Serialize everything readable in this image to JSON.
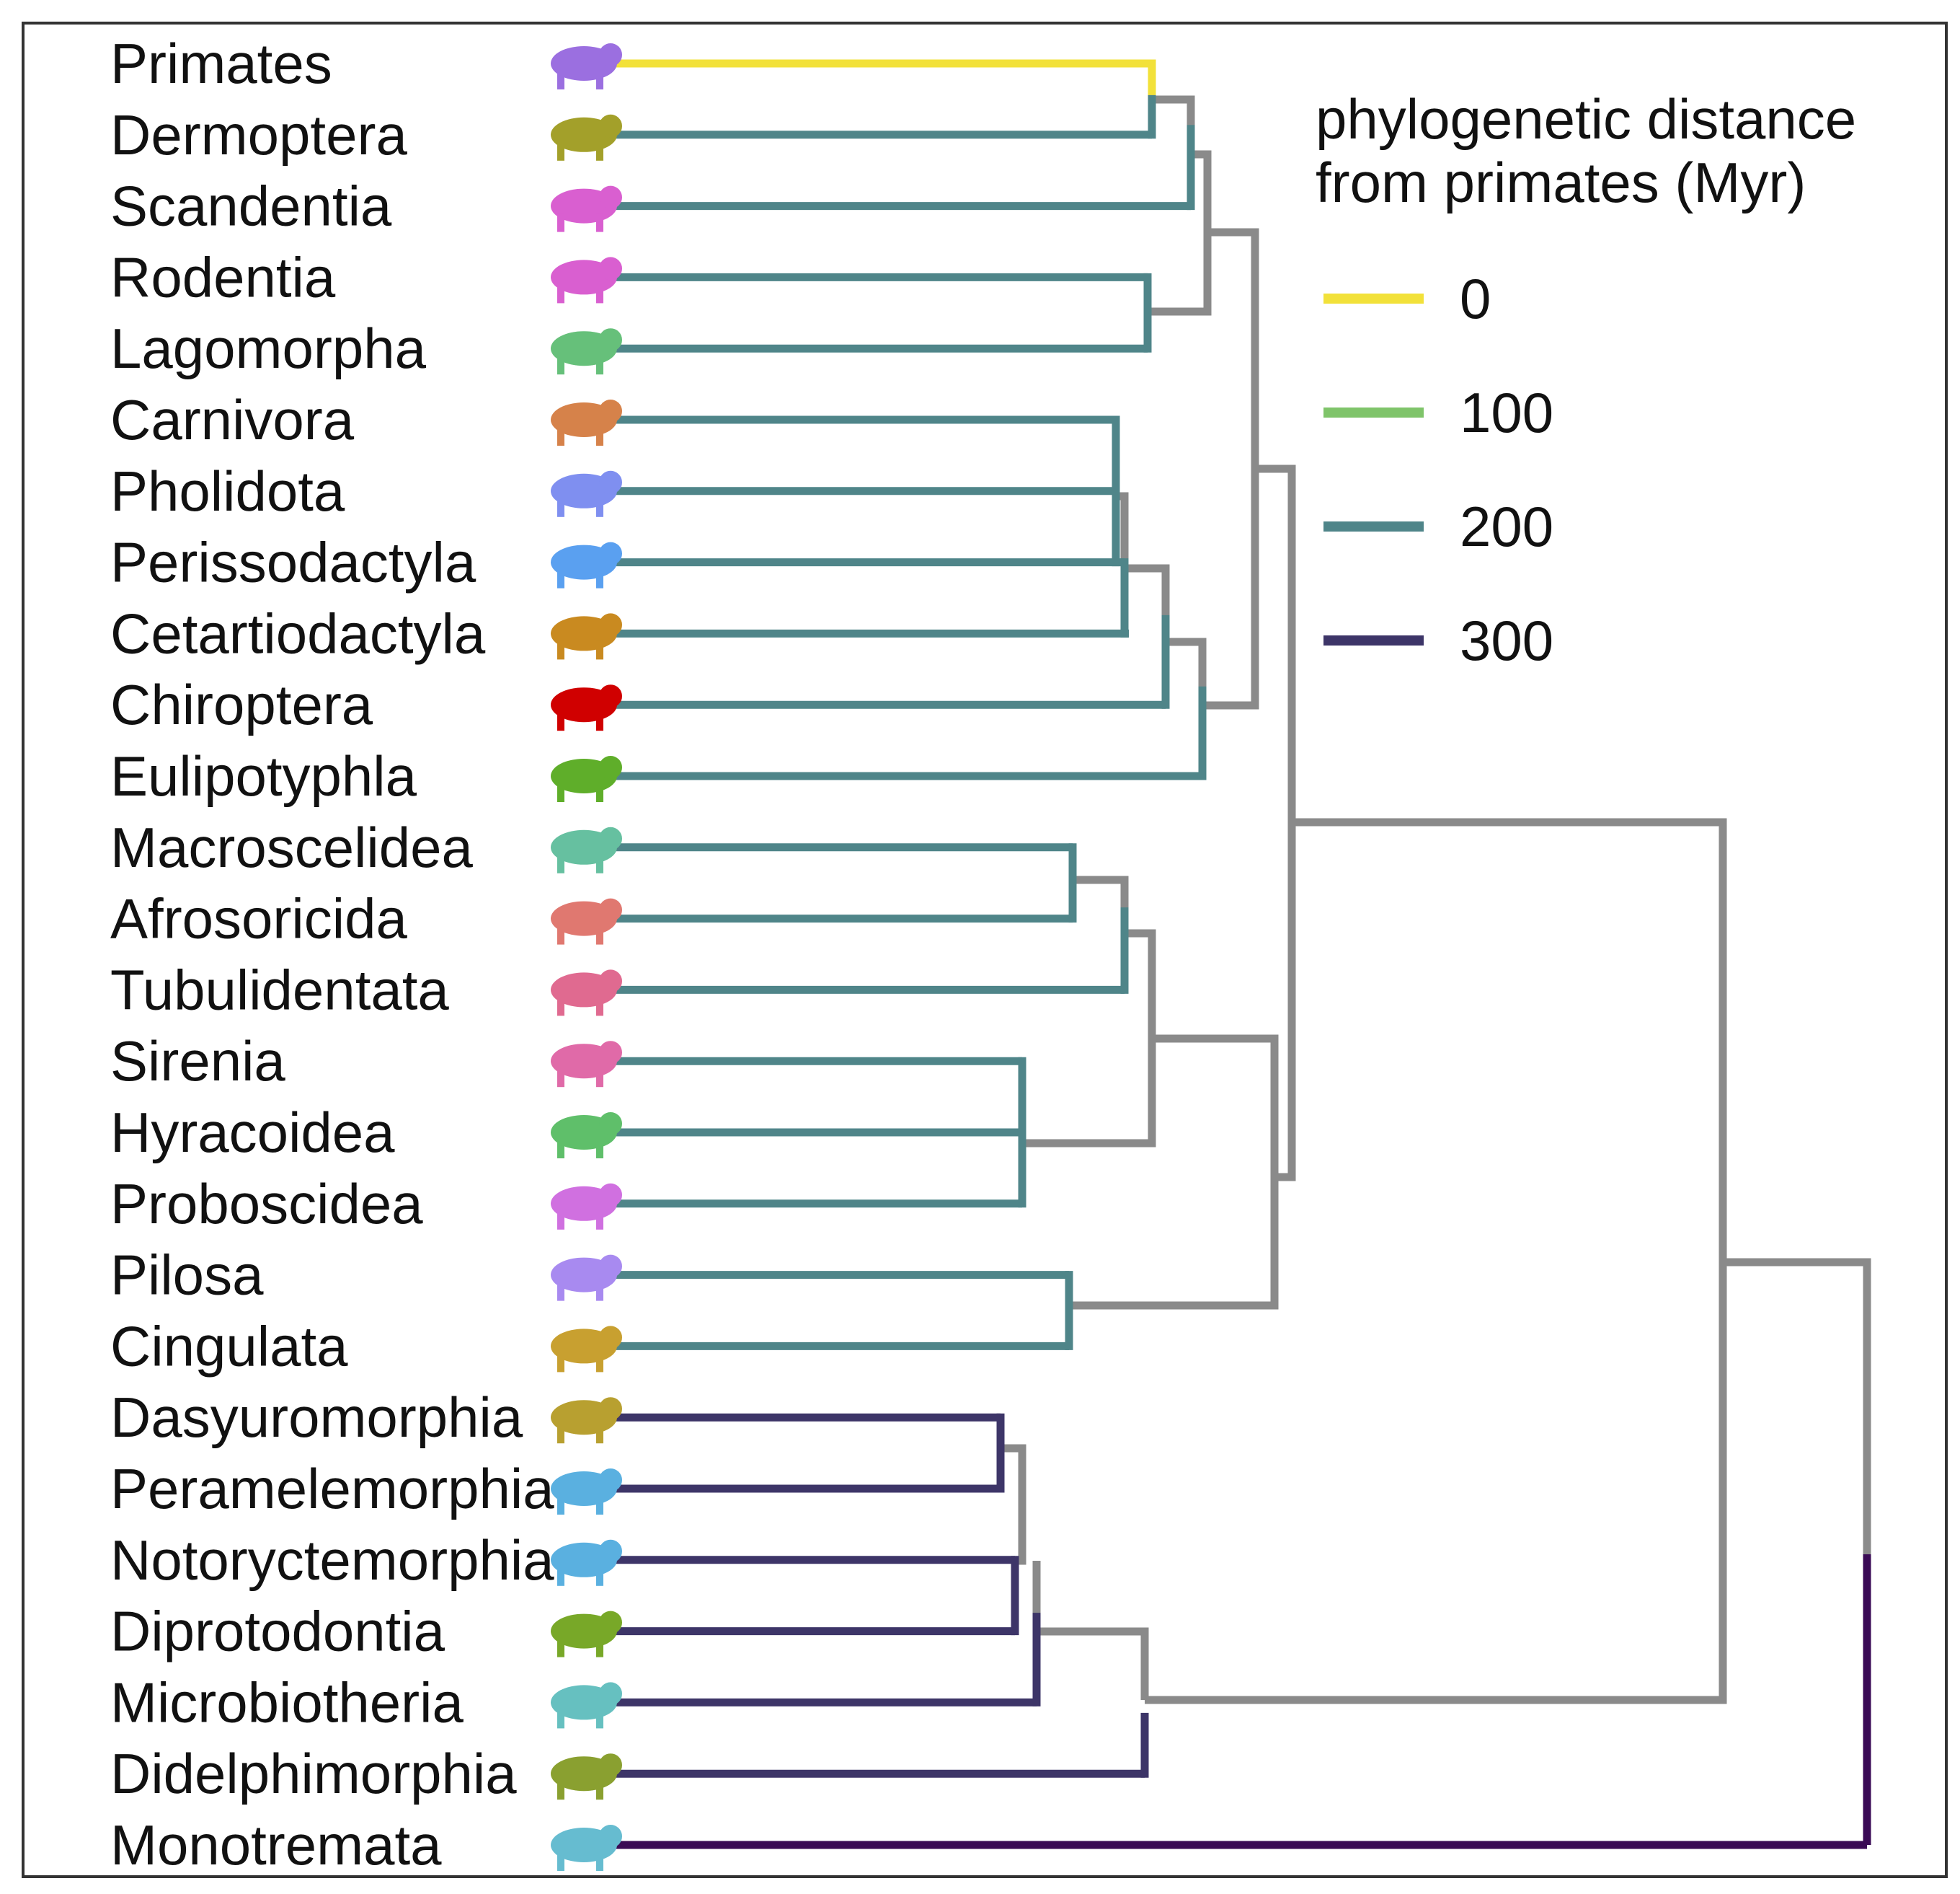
{
  "taxa": [
    {
      "name": "Primates",
      "color": "#9b6fe0",
      "icon": "lemur-silhouette-icon",
      "dist": 0
    },
    {
      "name": "Dermoptera",
      "color": "#a3a02a",
      "icon": "colugo-silhouette-icon",
      "dist": 200
    },
    {
      "name": "Scandentia",
      "color": "#d95fd0",
      "icon": "treeshrew-silhouette-icon",
      "dist": 200
    },
    {
      "name": "Rodentia",
      "color": "#d95fd0",
      "icon": "squirrel-silhouette-icon",
      "dist": 200
    },
    {
      "name": "Lagomorpha",
      "color": "#66c07a",
      "icon": "rabbit-silhouette-icon",
      "dist": 200
    },
    {
      "name": "Carnivora",
      "color": "#d6824a",
      "icon": "cat-silhouette-icon",
      "dist": 200
    },
    {
      "name": "Pholidota",
      "color": "#7f8ff0",
      "icon": "pangolin-silhouette-icon",
      "dist": 200
    },
    {
      "name": "Perissodactyla",
      "color": "#5aa0f0",
      "icon": "horse-silhouette-icon",
      "dist": 200
    },
    {
      "name": "Cetartiodactyla",
      "color": "#c98a20",
      "icon": "pig-silhouette-icon",
      "dist": 200
    },
    {
      "name": "Chiroptera",
      "color": "#d00000",
      "icon": "bat-silhouette-icon",
      "dist": 200
    },
    {
      "name": "Eulipotyphla",
      "color": "#5fae2a",
      "icon": "shrew-silhouette-icon",
      "dist": 200
    },
    {
      "name": "Macroscelidea",
      "color": "#66c0a0",
      "icon": "elephant-shrew-silhouette-icon",
      "dist": 200
    },
    {
      "name": "Afrosoricida",
      "color": "#e07870",
      "icon": "tenrec-silhouette-icon",
      "dist": 200
    },
    {
      "name": "Tubulidentata",
      "color": "#e06a90",
      "icon": "aardvark-silhouette-icon",
      "dist": 200
    },
    {
      "name": "Sirenia",
      "color": "#e06aa8",
      "icon": "manatee-silhouette-icon",
      "dist": 200
    },
    {
      "name": "Hyracoidea",
      "color": "#5fbf6a",
      "icon": "hyrax-silhouette-icon",
      "dist": 200
    },
    {
      "name": "Proboscidea",
      "color": "#d070e0",
      "icon": "elephant-silhouette-icon",
      "dist": 200
    },
    {
      "name": "Pilosa",
      "color": "#a88af0",
      "icon": "sloth-silhouette-icon",
      "dist": 200
    },
    {
      "name": "Cingulata",
      "color": "#c8a030",
      "icon": "armadillo-silhouette-icon",
      "dist": 200
    },
    {
      "name": "Dasyuromorphia",
      "color": "#b8a030",
      "icon": "quoll-silhouette-icon",
      "dist": 300
    },
    {
      "name": "Peramelemorphia",
      "color": "#5ab0e0",
      "icon": "bandicoot-silhouette-icon",
      "dist": 300
    },
    {
      "name": "Notoryctemorphia",
      "color": "#5ab0e0",
      "icon": "marsupial-mole-silhouette-icon",
      "dist": 300
    },
    {
      "name": "Diprotodontia",
      "color": "#78a828",
      "icon": "kangaroo-silhouette-icon",
      "dist": 300
    },
    {
      "name": "Microbiotheria",
      "color": "#66c0c0",
      "icon": "monito-silhouette-icon",
      "dist": 300
    },
    {
      "name": "Didelphimorphia",
      "color": "#8aa030",
      "icon": "opossum-silhouette-icon",
      "dist": 300
    },
    {
      "name": "Monotremata",
      "color": "#66bcd0",
      "icon": "echidna-silhouette-icon",
      "dist": 320
    }
  ],
  "legend": {
    "title_line1": "phylogenetic distance",
    "title_line2": "from primates (Myr)",
    "items": [
      {
        "label": "0",
        "color": "#f2e13a"
      },
      {
        "label": "100",
        "color": "#7fc46a"
      },
      {
        "label": "200",
        "color": "#4f8589"
      },
      {
        "label": "300",
        "color": "#3d3568"
      }
    ]
  },
  "colors": {
    "internal_branch": "#8a8a8a",
    "branch_0": "#f2e13a",
    "branch_200": "#4f8589",
    "branch_300": "#3d3568",
    "branch_monotremata": "#3a0a55",
    "frame": "#333333"
  }
}
